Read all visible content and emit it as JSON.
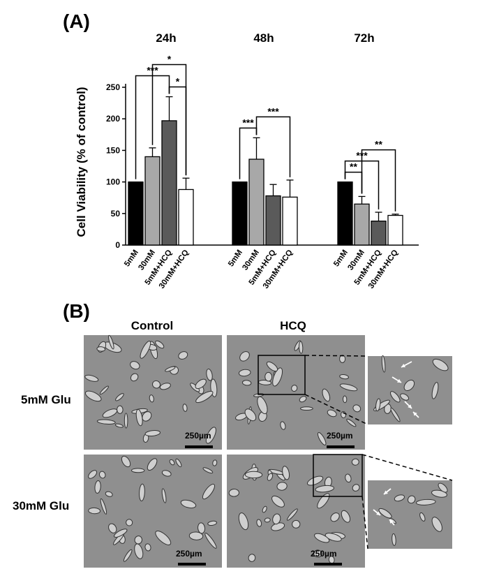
{
  "panel_a": {
    "label": "(A)",
    "time_labels": [
      "24h",
      "48h",
      "72h"
    ]
  },
  "chart_data": {
    "type": "bar",
    "ylabel": "Cell Viability (% of control)",
    "ylim": [
      0,
      250
    ],
    "yticks": [
      0,
      50,
      100,
      150,
      200,
      250
    ],
    "groups": [
      {
        "name": "24h",
        "categories": [
          "5mM",
          "30mM",
          "5mM+HCQ",
          "30mM+HCQ"
        ],
        "values": [
          100,
          140,
          197,
          88
        ],
        "errors": [
          0,
          14,
          38,
          18
        ],
        "significance": [
          {
            "from": 0,
            "to": 2,
            "label": "***"
          },
          {
            "from": 1,
            "to": 3,
            "label": "*"
          },
          {
            "from": 2,
            "to": 3,
            "label": "*"
          }
        ]
      },
      {
        "name": "48h",
        "categories": [
          "5mM",
          "30mM",
          "5mM+HCQ",
          "30mM+HCQ"
        ],
        "values": [
          100,
          136,
          78,
          76
        ],
        "errors": [
          0,
          34,
          18,
          27
        ],
        "significance": [
          {
            "from": 0,
            "to": 1,
            "label": "***"
          },
          {
            "from": 1,
            "to": 3,
            "label": "***"
          }
        ]
      },
      {
        "name": "72h",
        "categories": [
          "5mM",
          "30mM",
          "5mM+HCQ",
          "30mM+HCQ"
        ],
        "values": [
          100,
          65,
          38,
          47
        ],
        "errors": [
          0,
          12,
          14,
          2
        ],
        "significance": [
          {
            "from": 0,
            "to": 1,
            "label": "**"
          },
          {
            "from": 0,
            "to": 2,
            "label": "***"
          },
          {
            "from": 1,
            "to": 3,
            "label": "**"
          }
        ]
      }
    ],
    "bar_colors": [
      "#000000",
      "#a8a8a8",
      "#5a5a5a",
      "#ffffff"
    ]
  },
  "panel_b": {
    "label": "(B)",
    "column_headers": [
      "Control",
      "HCQ"
    ],
    "row_labels": [
      "5mM Glu",
      "30mM Glu"
    ],
    "scale_bar_label": "250µm"
  }
}
